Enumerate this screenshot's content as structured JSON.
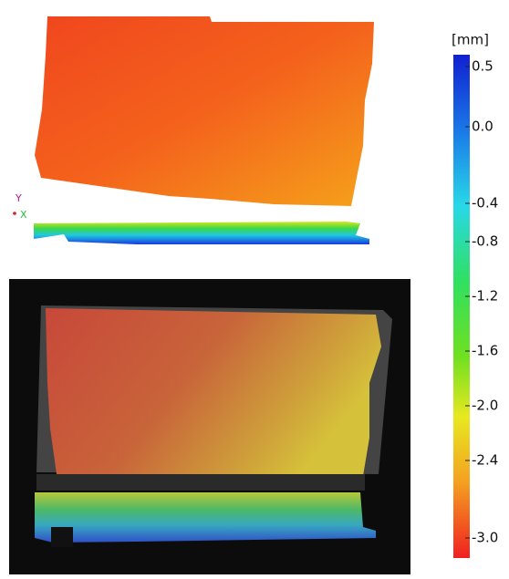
{
  "colorbar": {
    "unit": "[mm]",
    "ticks": [
      "0.5",
      "0.0",
      "-0.4",
      "-0.8",
      "-1.2",
      "-1.6",
      "-2.0",
      "-2.4",
      "-3.0"
    ]
  },
  "axes_triad": {
    "y": "Y",
    "x": "X"
  }
}
